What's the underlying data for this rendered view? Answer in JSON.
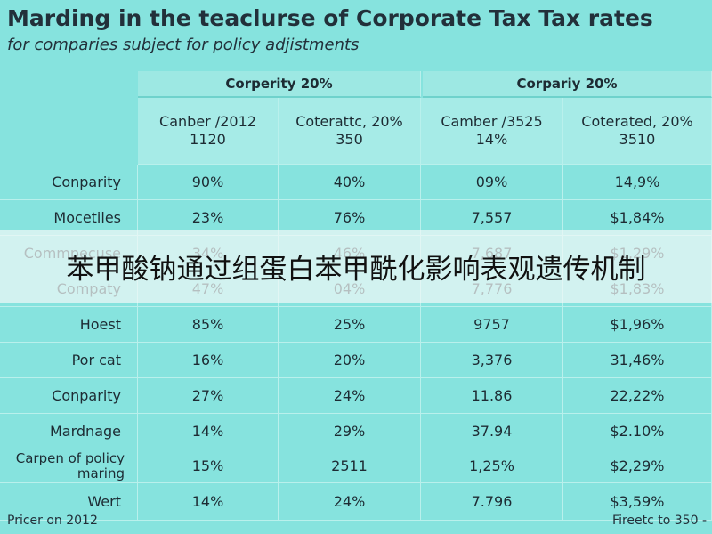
{
  "header": {
    "title": "Marding in the teaclurse of Corporate Tax Tax rates",
    "subtitle": "for comparies subject for policy adjistments"
  },
  "table": {
    "groups": [
      "Corperity 20%",
      "Corpariy 20%"
    ],
    "columns": [
      {
        "label": "Canber /2012",
        "value": "1120"
      },
      {
        "label": "Coterattc, 20%",
        "value": "350"
      },
      {
        "label": "Camber /3525",
        "value": "14%"
      },
      {
        "label": "Coterated, 20%",
        "value": "3510"
      }
    ],
    "rows": [
      [
        "Conparity",
        "90%",
        "40%",
        "09%",
        "14,9%"
      ],
      [
        "Mocetiles",
        "23%",
        "76%",
        "7,557",
        "$1,84%"
      ],
      [
        "Commpecuse",
        "34%",
        "46%",
        "7,687",
        "$1,29%"
      ],
      [
        "Compaty",
        "47%",
        "04%",
        "7,776",
        "$1,83%"
      ],
      [
        "Hoest",
        "85%",
        "25%",
        "9757",
        "$1,96%"
      ],
      [
        "Por cat",
        "16%",
        "20%",
        "3,376",
        "31,46%"
      ],
      [
        "Conparity",
        "27%",
        "24%",
        "11.86",
        "22,22%"
      ],
      [
        "Mardnage",
        "14%",
        "29%",
        "37.94",
        "$2.10%"
      ],
      [
        "Carpen of policy maring",
        "15%",
        "2511",
        "1,25%",
        "$2,29%"
      ],
      [
        "Wert",
        "14%",
        "24%",
        "7.796",
        "$3,59%"
      ]
    ]
  },
  "footer": {
    "left": "Pricer on 2012",
    "right": "Fireetc to 350 -"
  },
  "banner": "苯甲酸钠通过组蛋白苯甲酰化影响表观遗传机制"
}
